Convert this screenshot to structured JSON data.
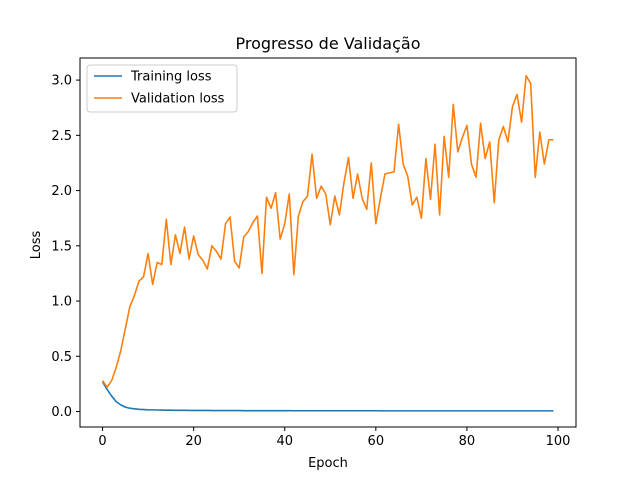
{
  "chart_data": {
    "type": "line",
    "title": "Progresso de Validação",
    "xlabel": "Epoch",
    "ylabel": "Loss",
    "xlim": [
      -4.95,
      103.95
    ],
    "ylim": [
      -0.14,
      3.2
    ],
    "xticks": [
      0,
      20,
      40,
      60,
      80,
      100
    ],
    "yticks": [
      0.0,
      0.5,
      1.0,
      1.5,
      2.0,
      2.5,
      3.0
    ],
    "xtick_labels": [
      "0",
      "20",
      "40",
      "60",
      "80",
      "100"
    ],
    "ytick_labels": [
      "0.0",
      "0.5",
      "1.0",
      "1.5",
      "2.0",
      "2.5",
      "3.0"
    ],
    "grid": false,
    "legend_position": "upper-left",
    "series": [
      {
        "name": "Training loss",
        "color": "#1f77b4",
        "x": [
          0,
          1,
          2,
          3,
          4,
          5,
          6,
          7,
          8,
          9,
          10,
          11,
          12,
          13,
          14,
          15,
          16,
          17,
          18,
          19,
          20,
          21,
          22,
          23,
          24,
          25,
          26,
          27,
          28,
          29,
          30,
          31,
          32,
          33,
          34,
          35,
          36,
          37,
          38,
          39,
          40,
          41,
          42,
          43,
          44,
          45,
          46,
          47,
          48,
          49,
          50,
          51,
          52,
          53,
          54,
          55,
          56,
          57,
          58,
          59,
          60,
          61,
          62,
          63,
          64,
          65,
          66,
          67,
          68,
          69,
          70,
          71,
          72,
          73,
          74,
          75,
          76,
          77,
          78,
          79,
          80,
          81,
          82,
          83,
          84,
          85,
          86,
          87,
          88,
          89,
          90,
          91,
          92,
          93,
          94,
          95,
          96,
          97,
          98,
          99
        ],
        "values": [
          0.27,
          0.2,
          0.14,
          0.09,
          0.06,
          0.04,
          0.03,
          0.025,
          0.02,
          0.018,
          0.016,
          0.015,
          0.014,
          0.013,
          0.012,
          0.012,
          0.011,
          0.011,
          0.011,
          0.01,
          0.01,
          0.01,
          0.01,
          0.01,
          0.009,
          0.009,
          0.009,
          0.009,
          0.009,
          0.009,
          0.009,
          0.008,
          0.008,
          0.008,
          0.008,
          0.008,
          0.008,
          0.008,
          0.008,
          0.008,
          0.008,
          0.008,
          0.007,
          0.007,
          0.007,
          0.007,
          0.007,
          0.007,
          0.007,
          0.007,
          0.007,
          0.007,
          0.007,
          0.007,
          0.007,
          0.007,
          0.007,
          0.007,
          0.007,
          0.007,
          0.007,
          0.007,
          0.006,
          0.006,
          0.006,
          0.006,
          0.006,
          0.006,
          0.006,
          0.006,
          0.006,
          0.006,
          0.006,
          0.006,
          0.006,
          0.006,
          0.006,
          0.006,
          0.006,
          0.006,
          0.006,
          0.006,
          0.006,
          0.006,
          0.006,
          0.006,
          0.006,
          0.006,
          0.006,
          0.006,
          0.006,
          0.006,
          0.006,
          0.006,
          0.006,
          0.006,
          0.006,
          0.006,
          0.006,
          0.006
        ]
      },
      {
        "name": "Validation loss",
        "color": "#ff7f0e",
        "x": [
          0,
          1,
          2,
          3,
          4,
          5,
          6,
          7,
          8,
          9,
          10,
          11,
          12,
          13,
          14,
          15,
          16,
          17,
          18,
          19,
          20,
          21,
          22,
          23,
          24,
          25,
          26,
          27,
          28,
          29,
          30,
          31,
          32,
          33,
          34,
          35,
          36,
          37,
          38,
          39,
          40,
          41,
          42,
          43,
          44,
          45,
          46,
          47,
          48,
          49,
          50,
          51,
          52,
          53,
          54,
          55,
          56,
          57,
          58,
          59,
          60,
          61,
          62,
          63,
          64,
          65,
          66,
          67,
          68,
          69,
          70,
          71,
          72,
          73,
          74,
          75,
          76,
          77,
          78,
          79,
          80,
          81,
          82,
          83,
          84,
          85,
          86,
          87,
          88,
          89,
          90,
          91,
          92,
          93,
          94,
          95,
          96,
          97,
          98,
          99
        ],
        "values": [
          0.28,
          0.22,
          0.28,
          0.4,
          0.55,
          0.75,
          0.95,
          1.05,
          1.18,
          1.22,
          1.43,
          1.15,
          1.35,
          1.33,
          1.74,
          1.33,
          1.6,
          1.43,
          1.67,
          1.38,
          1.59,
          1.42,
          1.37,
          1.29,
          1.5,
          1.45,
          1.38,
          1.7,
          1.76,
          1.36,
          1.3,
          1.58,
          1.63,
          1.71,
          1.77,
          1.25,
          1.94,
          1.84,
          1.98,
          1.56,
          1.7,
          1.97,
          1.24,
          1.77,
          1.9,
          1.95,
          2.33,
          1.93,
          2.04,
          1.97,
          1.69,
          1.95,
          1.78,
          2.07,
          2.3,
          1.93,
          2.15,
          1.93,
          1.83,
          2.25,
          1.7,
          1.93,
          2.15,
          2.16,
          2.17,
          2.6,
          2.24,
          2.13,
          1.87,
          1.94,
          1.75,
          2.29,
          1.92,
          2.42,
          1.78,
          2.49,
          2.12,
          2.78,
          2.35,
          2.48,
          2.59,
          2.24,
          2.12,
          2.61,
          2.29,
          2.44,
          1.89,
          2.46,
          2.58,
          2.44,
          2.76,
          2.87,
          2.62,
          3.04,
          2.97,
          2.12,
          2.53,
          2.24,
          2.46,
          2.46
        ]
      }
    ]
  }
}
